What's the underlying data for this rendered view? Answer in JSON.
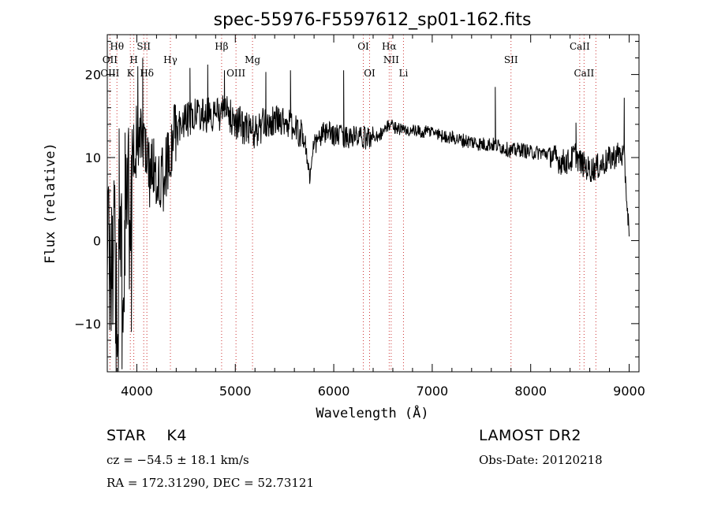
{
  "chart_data": {
    "type": "line",
    "title": "spec-55976-F5597612_sp01-162.fits",
    "xlabel": "Wavelength (Å)",
    "ylabel": "Flux (relative)",
    "xlim": [
      3700,
      9100
    ],
    "ylim": [
      -15.8,
      24.8
    ],
    "xticks": [
      4000,
      5000,
      6000,
      7000,
      8000,
      9000
    ],
    "yticks": [
      -10,
      0,
      10,
      20
    ],
    "grid": false,
    "legend": "none",
    "line_color": "#000000",
    "marker_color": "#cc3333",
    "line_markers": [
      {
        "label": "Hθ",
        "x": 3798,
        "row": 1
      },
      {
        "label": "OII",
        "x": 3727,
        "row": 2
      },
      {
        "label": "OIII",
        "x": 3727,
        "row": 3
      },
      {
        "label": "SII",
        "x": 4070,
        "row": 1
      },
      {
        "label": "H",
        "x": 3969,
        "row": 2
      },
      {
        "label": "K",
        "x": 3934,
        "row": 3
      },
      {
        "label": "Hδ",
        "x": 4102,
        "row": 3
      },
      {
        "label": "Hγ",
        "x": 4341,
        "row": 2
      },
      {
        "label": "Hβ",
        "x": 4861,
        "row": 1
      },
      {
        "label": "Mg",
        "x": 5175,
        "row": 2
      },
      {
        "label": "OIII",
        "x": 5007,
        "row": 3
      },
      {
        "label": "OI",
        "x": 6300,
        "row": 1
      },
      {
        "label": "OI",
        "x": 6364,
        "row": 3
      },
      {
        "label": "Hα",
        "x": 6563,
        "row": 1
      },
      {
        "label": "NII",
        "x": 6583,
        "row": 2
      },
      {
        "label": "Li",
        "x": 6708,
        "row": 3
      },
      {
        "label": "SII",
        "x": 7800,
        "row": 2
      },
      {
        "label": "CaII",
        "x": 8498,
        "row": 1
      },
      {
        "label": "CaII",
        "x": 8542,
        "row": 3
      },
      {
        "label": "",
        "x": 8662,
        "row": 0
      }
    ],
    "anchor_points": [
      [
        3700,
        7.0
      ],
      [
        3740,
        -6.0
      ],
      [
        3770,
        5.0
      ],
      [
        3800,
        -10.0
      ],
      [
        3830,
        4.0
      ],
      [
        3860,
        -9.0
      ],
      [
        3890,
        6.0
      ],
      [
        3920,
        3.0
      ],
      [
        3950,
        5.0
      ],
      [
        3980,
        10.0
      ],
      [
        4000,
        12.0
      ],
      [
        4040,
        13.0
      ],
      [
        4080,
        11.0
      ],
      [
        4120,
        8.0
      ],
      [
        4160,
        9.0
      ],
      [
        4200,
        7.0
      ],
      [
        4250,
        8.0
      ],
      [
        4300,
        9.0
      ],
      [
        4350,
        11.5
      ],
      [
        4400,
        13.0
      ],
      [
        4450,
        14.0
      ],
      [
        4500,
        14.5
      ],
      [
        4600,
        15.0
      ],
      [
        4700,
        15.2
      ],
      [
        4800,
        15.0
      ],
      [
        4900,
        15.5
      ],
      [
        5000,
        14.5
      ],
      [
        5100,
        13.5
      ],
      [
        5200,
        13.0
      ],
      [
        5300,
        14.0
      ],
      [
        5400,
        14.5
      ],
      [
        5500,
        14.5
      ],
      [
        5600,
        13.5
      ],
      [
        5700,
        12.5
      ],
      [
        5760,
        7.5
      ],
      [
        5800,
        11.5
      ],
      [
        5900,
        13.0
      ],
      [
        6000,
        12.8
      ],
      [
        6100,
        12.5
      ],
      [
        6200,
        12.5
      ],
      [
        6300,
        12.3
      ],
      [
        6400,
        12.5
      ],
      [
        6500,
        13.0
      ],
      [
        6560,
        14.0
      ],
      [
        6600,
        13.8
      ],
      [
        6700,
        13.3
      ],
      [
        6800,
        13.2
      ],
      [
        6900,
        13.0
      ],
      [
        7000,
        13.2
      ],
      [
        7100,
        12.6
      ],
      [
        7200,
        12.4
      ],
      [
        7300,
        12.1
      ],
      [
        7400,
        11.9
      ],
      [
        7500,
        11.6
      ],
      [
        7600,
        11.6
      ],
      [
        7700,
        11.3
      ],
      [
        7800,
        10.8
      ],
      [
        7900,
        11.0
      ],
      [
        8000,
        10.6
      ],
      [
        8100,
        10.6
      ],
      [
        8200,
        10.4
      ],
      [
        8300,
        9.5
      ],
      [
        8400,
        9.5
      ],
      [
        8450,
        10.5
      ],
      [
        8500,
        9.5
      ],
      [
        8600,
        8.5
      ],
      [
        8700,
        9.0
      ],
      [
        8800,
        9.8
      ],
      [
        8900,
        10.5
      ],
      [
        8950,
        10.0
      ],
      [
        9000,
        0.5
      ]
    ],
    "features": [
      {
        "x": 3790,
        "y": -16.0
      },
      {
        "x": 3820,
        "y": 13.5
      },
      {
        "x": 3850,
        "y": -15.5
      },
      {
        "x": 3880,
        "y": 13.0
      },
      {
        "x": 3910,
        "y": 10.0
      },
      {
        "x": 3945,
        "y": -11.0
      },
      {
        "x": 4010,
        "y": 21.0
      },
      {
        "x": 4060,
        "y": 22.0
      },
      {
        "x": 4130,
        "y": 4.0
      },
      {
        "x": 4270,
        "y": 3.5
      },
      {
        "x": 4540,
        "y": 20.8
      },
      {
        "x": 4720,
        "y": 21.2
      },
      {
        "x": 4890,
        "y": 20.5
      },
      {
        "x": 5310,
        "y": 20.3
      },
      {
        "x": 5560,
        "y": 20.5
      },
      {
        "x": 6100,
        "y": 20.5
      },
      {
        "x": 7640,
        "y": 18.5
      },
      {
        "x": 8460,
        "y": 14.2
      },
      {
        "x": 8950,
        "y": 17.2
      },
      {
        "x": 9000,
        "y": 0.5
      }
    ],
    "noise": [
      [
        3700,
        4000,
        6.0
      ],
      [
        4000,
        4400,
        4.0
      ],
      [
        4400,
        5300,
        2.2
      ],
      [
        5300,
        5700,
        1.8
      ],
      [
        5700,
        6400,
        1.4
      ],
      [
        6400,
        7300,
        0.8
      ],
      [
        7300,
        8200,
        0.9
      ],
      [
        8200,
        9000,
        1.6
      ]
    ]
  },
  "info": {
    "object_class": "STAR",
    "subclass": "K4",
    "redshift": "cz = −54.5 ± 18.1 km/s",
    "coords": "RA = 172.31290, DEC =  52.73121",
    "survey": "LAMOST DR2",
    "obs_date": "Obs-Date: 20120218"
  }
}
